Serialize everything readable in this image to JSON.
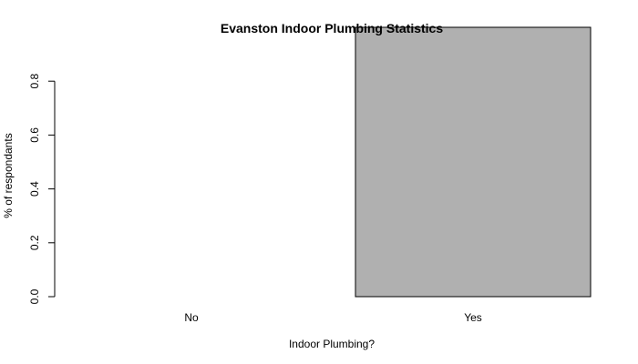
{
  "chart_data": {
    "type": "bar",
    "title": "Evanston Indoor Plumbing Statistics",
    "xlabel": "Indoor Plumbing?",
    "ylabel": "% of respondants",
    "categories": [
      "No",
      "Yes"
    ],
    "values": [
      0.0,
      1.0
    ],
    "y_ticks": [
      "0.0",
      "0.2",
      "0.4",
      "0.6",
      "0.8"
    ],
    "ylim": [
      0,
      1
    ],
    "bar_color": "#b0b0b0",
    "grid": false,
    "legend": "none"
  }
}
